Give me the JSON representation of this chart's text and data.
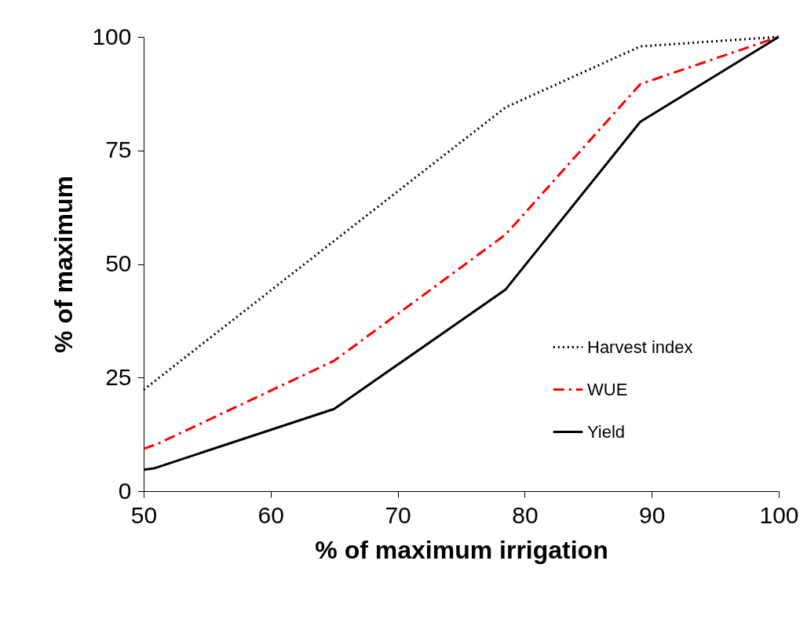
{
  "chart_data": {
    "type": "line",
    "xlabel": "% of maximum irrigation",
    "ylabel": "% of maximum",
    "xlim": [
      50,
      100
    ],
    "ylim": [
      0,
      100
    ],
    "xticks": [
      50,
      60,
      70,
      80,
      90,
      100
    ],
    "yticks": [
      0,
      25,
      50,
      75,
      100
    ],
    "grid": false,
    "legend": "bottom right",
    "marker": "none",
    "series": [
      {
        "name": "Harvest index",
        "color": "#000000",
        "line_style": "dotted",
        "x": [
          50,
          65,
          78.5,
          89.1,
          100
        ],
        "values": [
          22.3,
          55.1,
          84.5,
          97.9,
          100
        ]
      },
      {
        "name": "WUE",
        "color": "#ff0000",
        "line_style": "dashdot",
        "x": [
          50,
          51.1,
          65,
          78.5,
          89.1,
          100
        ],
        "values": [
          9.3,
          10.4,
          28.7,
          56.5,
          89.6,
          100
        ]
      },
      {
        "name": "Yield",
        "color": "#000000",
        "line_style": "solid",
        "x": [
          50,
          50.8,
          65,
          78.5,
          89.1,
          100
        ],
        "values": [
          4.7,
          5.0,
          18.1,
          44.4,
          81.3,
          100
        ]
      }
    ]
  }
}
